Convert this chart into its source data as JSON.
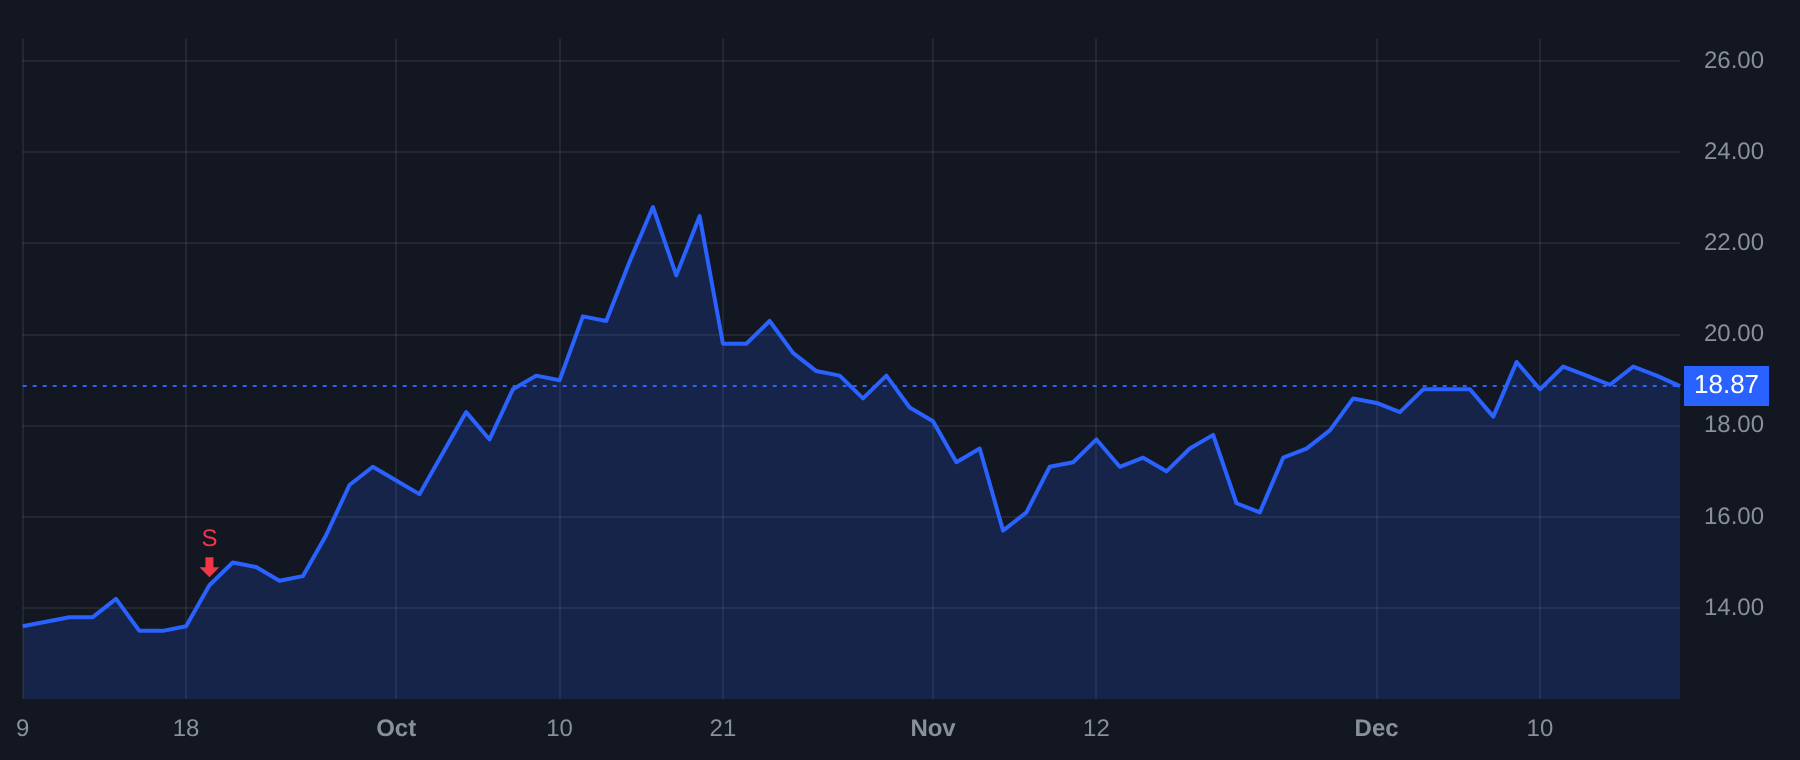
{
  "chart_data": {
    "type": "area",
    "categories": [
      "9",
      null,
      null,
      null,
      null,
      null,
      null,
      "18",
      null,
      null,
      null,
      null,
      null,
      null,
      null,
      null,
      "Oct",
      null,
      null,
      null,
      null,
      null,
      null,
      "10",
      null,
      null,
      null,
      null,
      null,
      null,
      "21",
      null,
      null,
      null,
      null,
      null,
      null,
      null,
      null,
      "Nov",
      null,
      null,
      null,
      null,
      null,
      null,
      "12",
      null,
      null,
      null,
      null,
      null,
      null,
      null,
      null,
      null,
      null,
      null,
      "Dec",
      null,
      null,
      null,
      null,
      null,
      null,
      "10",
      null,
      null,
      null,
      null,
      null,
      null
    ],
    "series": [
      {
        "color": "#2962ff",
        "values": [
          13.6,
          13.7,
          13.8,
          13.8,
          14.2,
          13.5,
          13.5,
          13.6,
          14.5,
          15.0,
          14.9,
          14.6,
          14.7,
          15.6,
          16.7,
          17.1,
          16.8,
          16.5,
          17.4,
          18.3,
          17.7,
          18.8,
          19.1,
          19.0,
          20.4,
          20.3,
          21.6,
          22.8,
          21.3,
          22.6,
          19.8,
          19.8,
          20.3,
          19.6,
          19.2,
          19.1,
          18.6,
          19.1,
          18.4,
          18.1,
          17.2,
          17.5,
          15.7,
          16.1,
          17.1,
          17.2,
          17.7,
          17.1,
          17.3,
          17.0,
          17.5,
          17.8,
          16.3,
          16.1,
          17.3,
          17.5,
          17.9,
          18.6,
          18.5,
          18.3,
          18.8,
          18.8,
          18.8,
          18.2,
          19.4,
          18.8,
          19.3,
          19.1,
          18.9,
          19.3,
          19.1,
          18.87
        ]
      }
    ],
    "ylim": [
      12,
      26.5
    ],
    "yticks": [
      {
        "value": 14,
        "label": "14.00"
      },
      {
        "value": 16,
        "label": "16.00"
      },
      {
        "value": 18,
        "label": "18.00"
      },
      {
        "value": 20,
        "label": "20.00"
      },
      {
        "value": 22,
        "label": "22.00"
      },
      {
        "value": 24,
        "label": "24.00"
      },
      {
        "value": 26,
        "label": "26.00"
      }
    ],
    "ref_lines": [
      {
        "axis": "y",
        "value": 18.87,
        "label": "18.87",
        "color": "#2962ff",
        "line_style": "dotted"
      }
    ],
    "annotations": [
      {
        "text": "S",
        "y": 14.5
      }
    ],
    "grid": true,
    "legend": false
  }
}
